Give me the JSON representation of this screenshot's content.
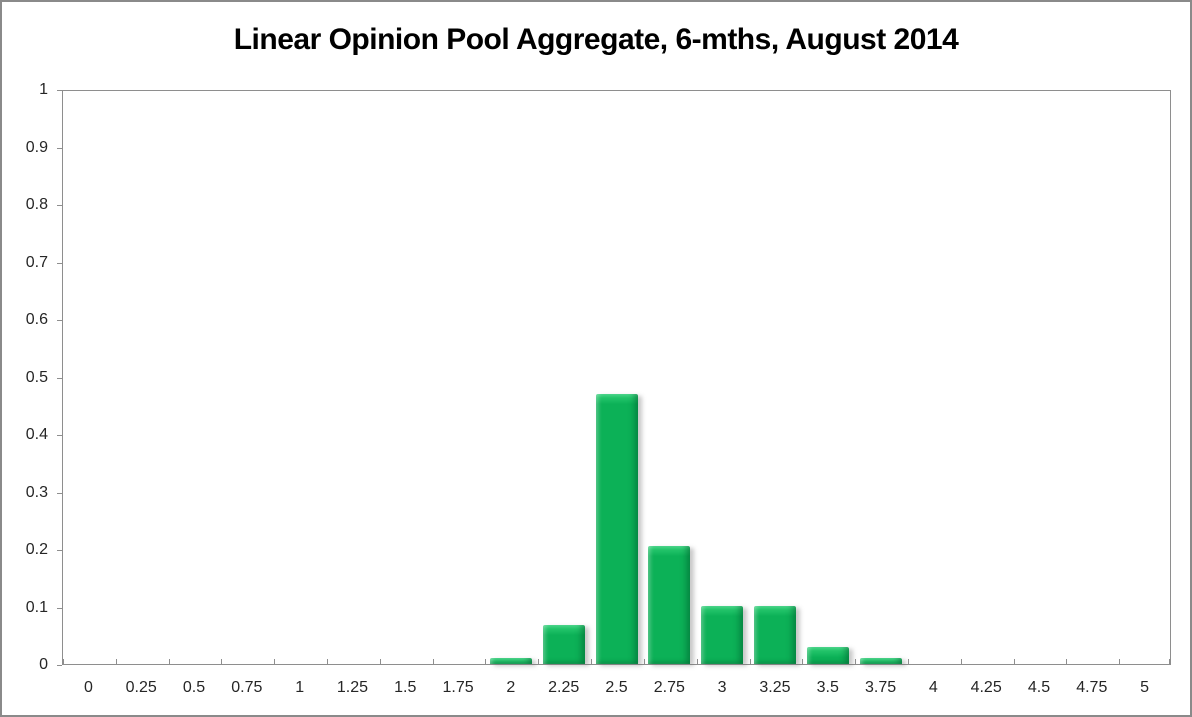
{
  "window": {
    "background": "#ffffff",
    "border_color": "#8a8a8a"
  },
  "chart_data": {
    "type": "bar",
    "title": "Linear Opinion Pool Aggregate, 6-mths, August 2014",
    "xlabel": "",
    "ylabel": "",
    "categories": [
      "0",
      "0.25",
      "0.5",
      "0.75",
      "1",
      "1.25",
      "1.5",
      "1.75",
      "2",
      "2.25",
      "2.5",
      "2.75",
      "3",
      "3.25",
      "3.5",
      "3.75",
      "4",
      "4.25",
      "4.5",
      "4.75",
      "5"
    ],
    "values": [
      0,
      0,
      0,
      0,
      0,
      0,
      0,
      0,
      0.01,
      0.068,
      0.47,
      0.205,
      0.1,
      0.1,
      0.03,
      0.01,
      0,
      0,
      0,
      0,
      0
    ],
    "ylim": [
      0,
      1
    ],
    "y_ticks": [
      0,
      0.1,
      0.2,
      0.3,
      0.4,
      0.5,
      0.6,
      0.7,
      0.8,
      0.9,
      1
    ],
    "y_tick_labels": [
      "0",
      "0.1",
      "0.2",
      "0.3",
      "0.4",
      "0.5",
      "0.6",
      "0.7",
      "0.8",
      "0.9",
      "1"
    ],
    "grid": false,
    "legend": "none",
    "series_name": "Linear Opinion Pool",
    "bar_color": "#0cb157",
    "bar_highlight": "#4be08f",
    "axis_color": "#8e8e8e",
    "label_color": "#262626",
    "title_color": "#000000"
  }
}
